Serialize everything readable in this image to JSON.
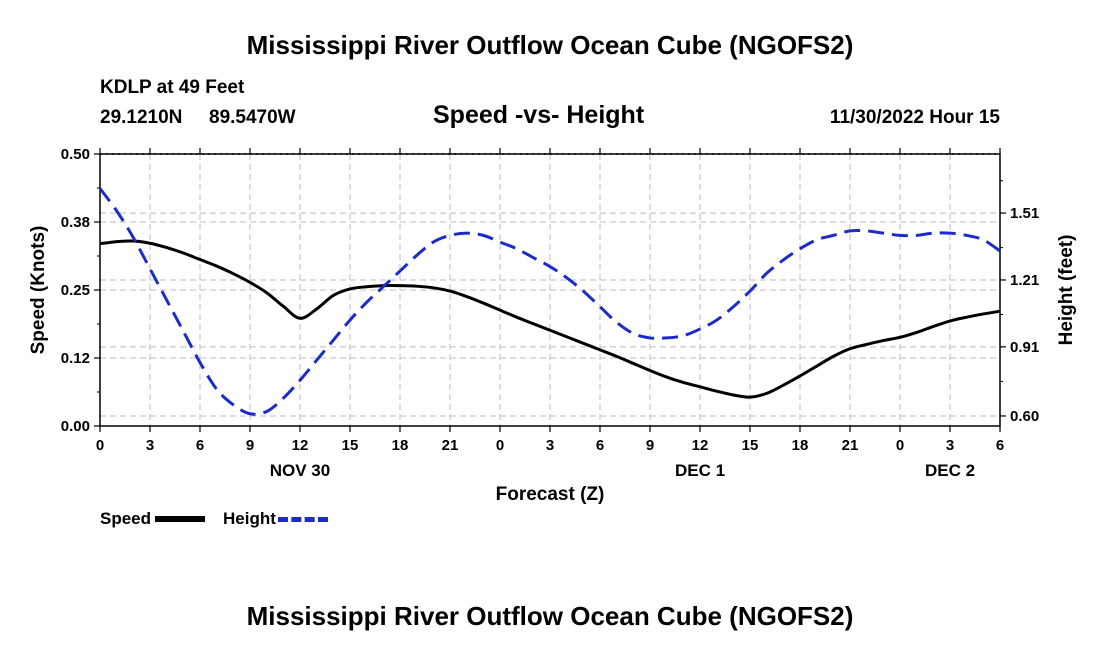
{
  "title": "Mississippi River Outflow Ocean Cube (NGOFS2)",
  "footer_title": "Mississippi River Outflow Ocean Cube (NGOFS2)",
  "station": {
    "name_depth": "KDLP at 49 Feet",
    "lat": "29.1210N",
    "lon": "89.5470W"
  },
  "datetime": "11/30/2022 Hour 15",
  "chart_data": {
    "type": "line",
    "title": "Speed -vs- Height",
    "xlabel": "Forecast (Z)",
    "ylabel_left": "Speed (Knots)",
    "ylabel_right": "Height (feet)",
    "x_range": [
      0,
      54
    ],
    "x_ticks": [
      0,
      3,
      6,
      9,
      12,
      15,
      18,
      21,
      24,
      27,
      30,
      33,
      36,
      39,
      42,
      45,
      48,
      51,
      54
    ],
    "x_tick_labels": [
      "0",
      "3",
      "6",
      "9",
      "12",
      "15",
      "18",
      "21",
      "0",
      "3",
      "6",
      "9",
      "12",
      "15",
      "18",
      "21",
      "0",
      "3",
      "6"
    ],
    "day_labels": [
      {
        "x": 12,
        "label": "NOV 30"
      },
      {
        "x": 36,
        "label": "DEC 1"
      },
      {
        "x": 51,
        "label": "DEC 2"
      }
    ],
    "left_axis": {
      "range": [
        0,
        0.5
      ],
      "ticks": [
        0,
        0.125,
        0.25,
        0.375,
        0.5
      ],
      "tick_labels": [
        "0.00",
        "0.12",
        "0.25",
        "0.38",
        "0.50"
      ]
    },
    "right_axis": {
      "range": [
        0.555,
        1.775
      ],
      "ticks": [
        0.6,
        0.91,
        1.21,
        1.51
      ],
      "tick_labels": [
        "0.60",
        "0.91",
        "1.21",
        "1.51"
      ]
    },
    "grid": true,
    "series": [
      {
        "name": "Speed",
        "axis": "left",
        "color": "#000000",
        "style": "solid",
        "x": [
          0,
          1,
          2,
          3,
          4,
          5,
          6,
          7,
          8,
          9,
          10,
          11,
          12,
          13,
          14,
          15,
          16,
          17,
          18,
          19,
          20,
          21,
          22,
          23,
          24,
          25,
          26,
          27,
          28,
          29,
          30,
          31,
          32,
          33,
          34,
          35,
          36,
          37,
          38,
          39,
          40,
          41,
          42,
          43,
          44,
          45,
          46,
          47,
          48,
          49,
          50,
          51,
          52,
          53,
          54
        ],
        "values": [
          0.335,
          0.339,
          0.34,
          0.336,
          0.328,
          0.318,
          0.306,
          0.294,
          0.28,
          0.264,
          0.245,
          0.22,
          0.198,
          0.215,
          0.24,
          0.252,
          0.256,
          0.258,
          0.258,
          0.257,
          0.254,
          0.248,
          0.238,
          0.226,
          0.213,
          0.2,
          0.188,
          0.176,
          0.164,
          0.152,
          0.14,
          0.128,
          0.115,
          0.102,
          0.09,
          0.08,
          0.072,
          0.064,
          0.057,
          0.053,
          0.06,
          0.075,
          0.092,
          0.11,
          0.128,
          0.142,
          0.15,
          0.157,
          0.163,
          0.172,
          0.183,
          0.193,
          0.2,
          0.206,
          0.211
        ]
      },
      {
        "name": "Height",
        "axis": "right",
        "color": "#1c2cc8",
        "style": "dashed",
        "x": [
          0,
          1,
          2,
          3,
          4,
          5,
          6,
          7,
          8,
          9,
          10,
          11,
          12,
          13,
          14,
          15,
          16,
          17,
          18,
          19,
          20,
          21,
          22,
          23,
          24,
          25,
          26,
          27,
          28,
          29,
          30,
          31,
          32,
          33,
          34,
          35,
          36,
          37,
          38,
          39,
          40,
          41,
          42,
          43,
          44,
          45,
          46,
          47,
          48,
          49,
          50,
          51,
          52,
          53,
          54
        ],
        "values": [
          1.62,
          1.52,
          1.4,
          1.26,
          1.12,
          0.98,
          0.84,
          0.72,
          0.65,
          0.61,
          0.62,
          0.68,
          0.76,
          0.85,
          0.94,
          1.03,
          1.11,
          1.18,
          1.25,
          1.32,
          1.38,
          1.41,
          1.42,
          1.41,
          1.38,
          1.35,
          1.31,
          1.27,
          1.22,
          1.16,
          1.09,
          1.02,
          0.97,
          0.95,
          0.95,
          0.96,
          0.99,
          1.03,
          1.09,
          1.16,
          1.24,
          1.3,
          1.35,
          1.39,
          1.41,
          1.43,
          1.43,
          1.42,
          1.41,
          1.41,
          1.42,
          1.42,
          1.41,
          1.39,
          1.34
        ]
      }
    ]
  },
  "legend": {
    "speed_label": "Speed",
    "height_label": "Height",
    "speed_color": "#000000",
    "height_color": "#1c2cc8"
  }
}
